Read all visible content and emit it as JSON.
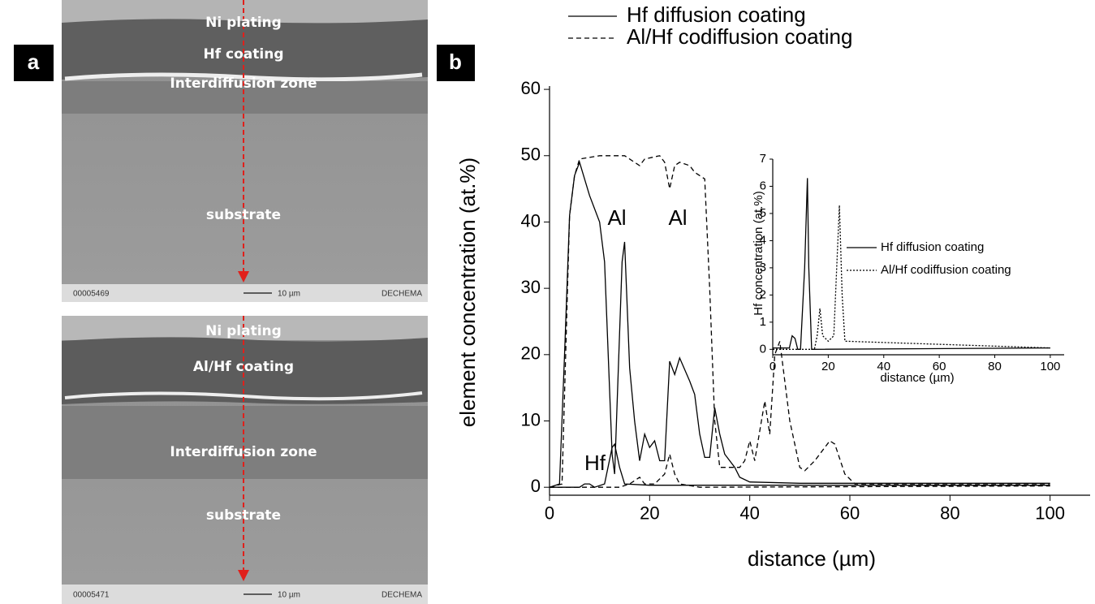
{
  "panel_labels": [
    "a",
    "b"
  ],
  "micrographs": [
    {
      "layers": [
        "Ni plating",
        "Hf coating",
        "Interdiffusion zone",
        "substrate"
      ],
      "footer": [
        "00005469",
        "10 µm",
        "DECHEMA"
      ]
    },
    {
      "layers": [
        "Ni plating",
        "Al/Hf coating",
        "Interdiffusion zone",
        "substrate"
      ],
      "footer": [
        "00005471",
        "10 µm",
        "DECHEMA"
      ]
    }
  ],
  "chart_data": [
    {
      "type": "line",
      "x_label": "distance (µm)",
      "y_label": "element concentration (at.%)",
      "xlim": [
        0,
        108
      ],
      "ylim": [
        -1.2,
        60.5
      ],
      "xticks": [
        0,
        20,
        40,
        60,
        80,
        100
      ],
      "yticks": [
        0,
        10,
        20,
        30,
        40,
        50,
        60
      ],
      "legend": [
        {
          "label": "Hf diffusion coating",
          "dash": "solid"
        },
        {
          "label": "Al/Hf codiffusion coating",
          "dash": "dashed"
        }
      ],
      "annotations": [
        "Al",
        "Al",
        "Hf"
      ],
      "series": [
        {
          "dash": "solid",
          "color": "#000000",
          "x": [
            0,
            2,
            3,
            4,
            5,
            6,
            8,
            10,
            11,
            12.5,
            13,
            14.5,
            15,
            16,
            17,
            18,
            19,
            20,
            21,
            22,
            23,
            24,
            25,
            26,
            28,
            29,
            30,
            31,
            32,
            33,
            34,
            35,
            37,
            38,
            40,
            50,
            100
          ],
          "values": [
            0,
            0.5,
            20,
            41,
            47,
            49,
            44,
            40,
            34,
            5,
            2,
            34,
            37,
            18,
            10,
            4,
            8,
            6,
            7,
            4,
            4,
            19,
            17,
            19.5,
            16,
            14,
            8,
            4.5,
            4.5,
            12,
            8,
            5,
            3,
            1.5,
            0.8,
            0.6,
            0.6
          ]
        },
        {
          "dash": "solid",
          "color": "#000000",
          "x": [
            0,
            6,
            7,
            8,
            9,
            11,
            12.5,
            13,
            14,
            15,
            20,
            100
          ],
          "values": [
            0,
            0,
            0.5,
            0.5,
            0,
            0.5,
            6,
            6.5,
            3,
            0.5,
            0.3,
            0.3
          ]
        },
        {
          "dash": "dashed",
          "color": "#000000",
          "x": [
            0,
            2.5,
            4,
            5,
            6,
            10,
            15,
            18,
            19,
            22,
            23,
            24,
            25,
            26,
            28,
            29,
            31,
            32,
            33,
            34,
            38,
            39,
            40,
            41,
            43,
            44,
            45,
            46,
            48,
            50,
            51,
            53,
            56,
            57,
            59,
            61,
            100
          ],
          "values": [
            0,
            0.5,
            41,
            47,
            49.5,
            50,
            50,
            48.5,
            49.5,
            50,
            49,
            45,
            48.5,
            49,
            48.5,
            47.5,
            46.5,
            30,
            10,
            3,
            3,
            4,
            7,
            4,
            13,
            8,
            20,
            22,
            10,
            3,
            2.5,
            4,
            7,
            6.5,
            2,
            0.5,
            0.5
          ]
        },
        {
          "dash": "dashed",
          "color": "#000000",
          "x": [
            0,
            14,
            16,
            18,
            19,
            21,
            23,
            24,
            25,
            26,
            30,
            100
          ],
          "values": [
            0,
            0,
            0.5,
            1.5,
            0.5,
            0.5,
            2,
            5,
            2,
            0.5,
            0,
            0.2
          ]
        }
      ]
    },
    {
      "type": "line",
      "x_label": "distance (µm)",
      "y_label": "Hf concentration (at.%)",
      "xlim": [
        0,
        105
      ],
      "ylim": [
        -0.2,
        7
      ],
      "xticks": [
        0,
        20,
        40,
        60,
        80,
        100
      ],
      "yticks": [
        0,
        1,
        2,
        3,
        4,
        5,
        6,
        7
      ],
      "series": [
        {
          "name": "Hf diffusion coating",
          "dash": "solid",
          "color": "#000000",
          "x": [
            0,
            6,
            7,
            8,
            9,
            10,
            11.5,
            12.5,
            13,
            14,
            100
          ],
          "values": [
            0.05,
            0.05,
            0.5,
            0.4,
            0,
            0,
            3,
            6.3,
            3,
            0,
            0.05
          ]
        },
        {
          "name": "Al/Hf codiffusion coating",
          "dash": "dotted",
          "color": "#000000",
          "x": [
            0,
            15,
            16,
            17,
            18,
            20,
            22,
            24,
            25,
            26,
            100
          ],
          "values": [
            0,
            0,
            0.5,
            1.5,
            0.5,
            0.3,
            0.5,
            5.3,
            2,
            0.3,
            0.05
          ]
        }
      ]
    }
  ]
}
